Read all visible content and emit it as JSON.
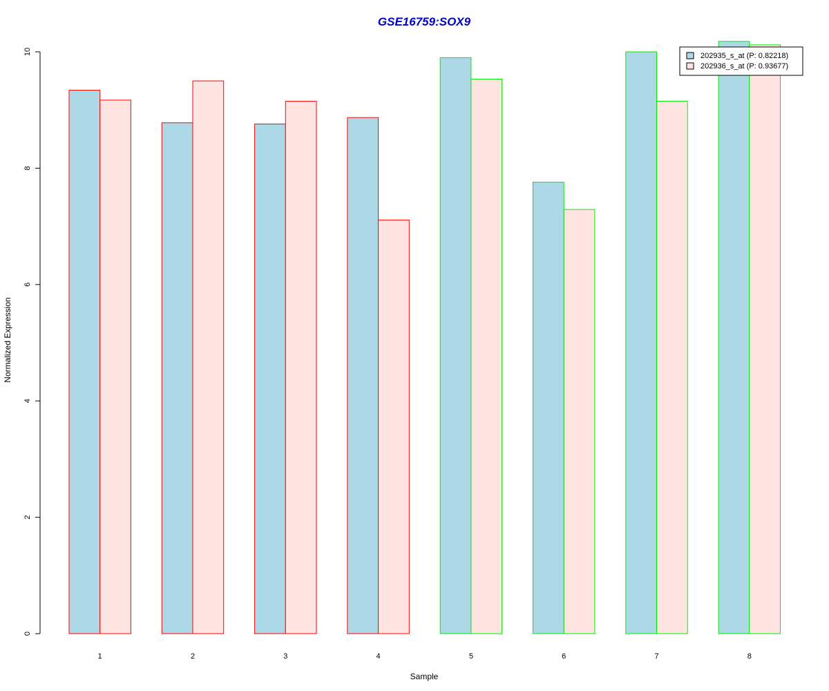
{
  "chart_data": {
    "type": "bar",
    "title": "GSE16759:SOX9",
    "xlabel": "Sample",
    "ylabel": "Normalized Expression",
    "categories": [
      "1",
      "2",
      "3",
      "4",
      "5",
      "6",
      "7",
      "8"
    ],
    "ylim": [
      0,
      10
    ],
    "yticks": [
      0,
      2,
      4,
      6,
      8,
      10
    ],
    "group_border_colors": [
      "#ff0000",
      "#ff0000",
      "#ff0000",
      "#ff0000",
      "#00ee00",
      "#00ee00",
      "#00ee00",
      "#00ee00"
    ],
    "series": [
      {
        "name": "202935_s_at (P: 0.82218)",
        "fill": "#add8e6",
        "values": [
          9.34,
          8.78,
          8.76,
          8.87,
          9.9,
          7.76,
          10.0,
          10.18
        ]
      },
      {
        "name": "202936_s_at (P: 0.93677)",
        "fill": "#ffe4e1",
        "values": [
          9.17,
          9.5,
          9.15,
          7.11,
          9.53,
          7.29,
          9.15,
          10.12
        ]
      }
    ],
    "legend_position": "top-right",
    "title_color": "#0000cc",
    "grid": false
  }
}
